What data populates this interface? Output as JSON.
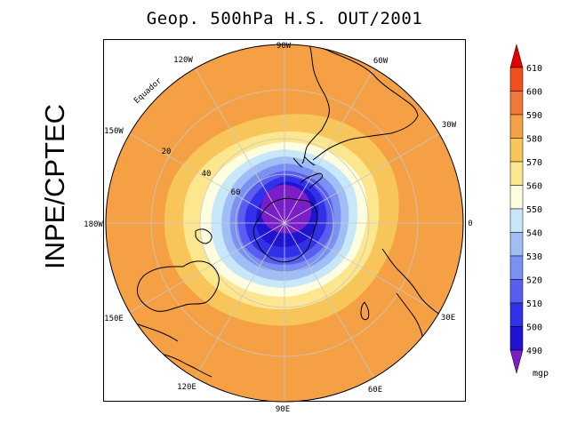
{
  "title": "Geop. 500hPa H.S. OUT/2001",
  "side_label": "INPE/CPTEC",
  "map": {
    "projection": "polar stereographic, south pole",
    "longitude_labels": [
      "90W",
      "60W",
      "30W",
      "0",
      "30E",
      "60E",
      "90E",
      "120E",
      "150E",
      "180W",
      "150W",
      "120W"
    ],
    "latitude_labels": [
      "20",
      "40",
      "60"
    ],
    "equator_label": "Equador"
  },
  "colorbar": {
    "levels": [
      "610",
      "600",
      "590",
      "580",
      "570",
      "560",
      "550",
      "540",
      "530",
      "520",
      "510",
      "500",
      "490"
    ],
    "units": "mgp",
    "colors": [
      "#e00000",
      "#f05020",
      "#f07838",
      "#f5a045",
      "#f7c55a",
      "#fce68e",
      "#fdfde0",
      "#c8e8fa",
      "#a0bef5",
      "#7a90f2",
      "#5a5ef0",
      "#3230e8",
      "#1e14d2",
      "#7a1fc8"
    ]
  }
}
